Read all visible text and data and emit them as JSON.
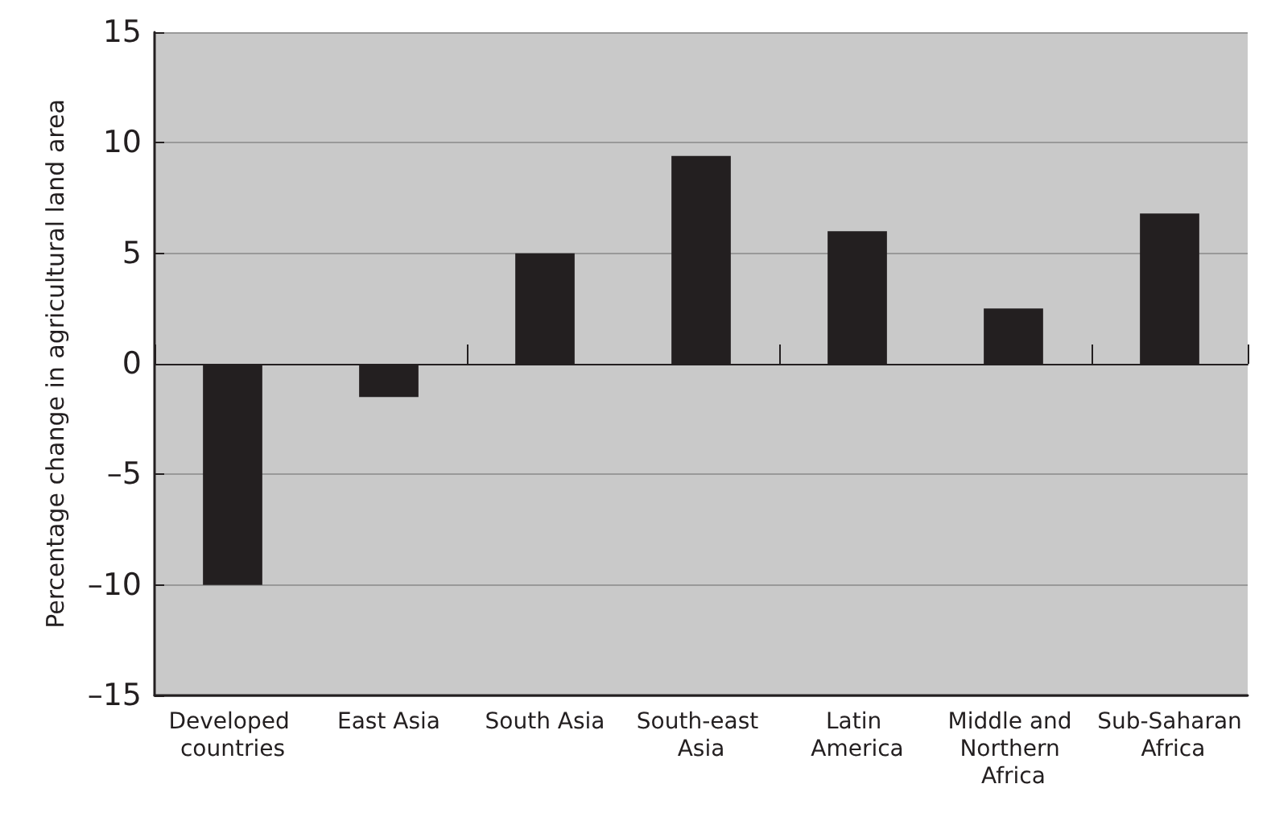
{
  "chart_data": {
    "type": "bar",
    "ylabel": "Percentage change in agricultural land area",
    "categories": [
      "Developed countries",
      "East Asia",
      "South Asia",
      "South-east Asia",
      "Latin America",
      "Middle and Northern Africa",
      "Sub-Saharan Africa"
    ],
    "values": [
      -10,
      -1.5,
      5,
      9.4,
      6,
      2.5,
      6.8
    ],
    "color": "#231f20",
    "ylim": [
      -15,
      15
    ],
    "yticks": [
      {
        "value": -15,
        "label": "–15"
      },
      {
        "value": -10,
        "label": "–10"
      },
      {
        "value": -5,
        "label": "–5"
      },
      0,
      5,
      10,
      15
    ],
    "grid": "y"
  }
}
